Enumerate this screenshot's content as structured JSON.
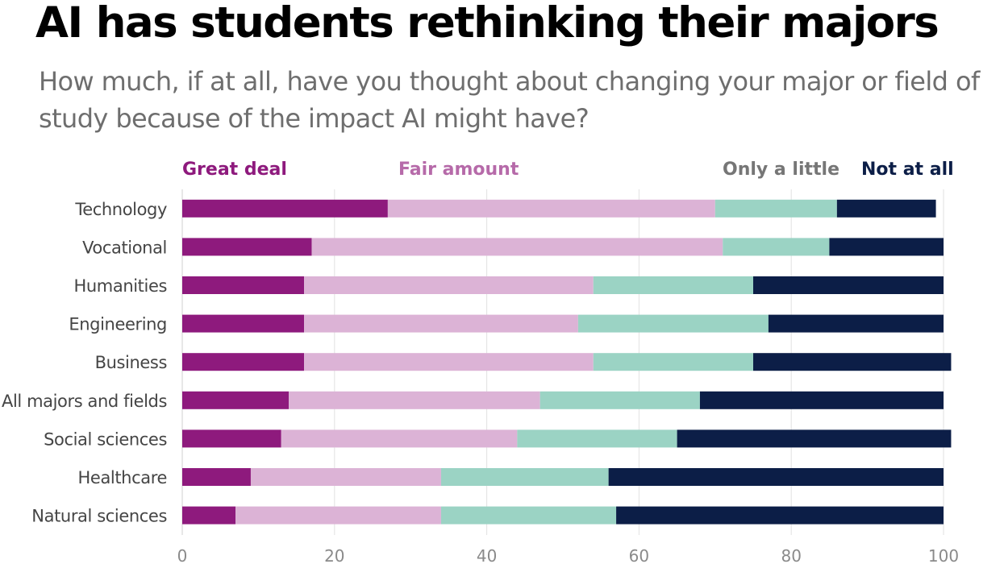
{
  "title": "AI has students rethinking their majors",
  "subtitle": "How much, if at all, have you thought about changing your major or field of study because of the impact AI might have?",
  "chart_data": {
    "type": "bar",
    "orientation": "horizontal",
    "stacked": true,
    "categories": [
      "Technology",
      "Vocational",
      "Humanities",
      "Engineering",
      "Business",
      "All majors and fields",
      "Social sciences",
      "Healthcare",
      "Natural sciences"
    ],
    "series": [
      {
        "name": "Great deal",
        "color": "#8e1a7d",
        "values": [
          27,
          17,
          16,
          16,
          16,
          14,
          13,
          9,
          7
        ]
      },
      {
        "name": "Fair amount",
        "color": "#dcb3d6",
        "values": [
          43,
          54,
          38,
          36,
          38,
          33,
          31,
          25,
          27
        ]
      },
      {
        "name": "Only a little",
        "color": "#9bd3c4",
        "values": [
          16,
          14,
          21,
          25,
          21,
          21,
          21,
          22,
          23
        ]
      },
      {
        "name": "Not at all",
        "color": "#0c1e47",
        "values": [
          13,
          15,
          25,
          23,
          26,
          32,
          36,
          44,
          43
        ]
      }
    ],
    "legend_colors": [
      "#8e1a7d",
      "#b66aa9",
      "#767676",
      "#0c1e47"
    ],
    "xlim": [
      0,
      100
    ],
    "xticks": [
      0,
      20,
      40,
      60,
      80,
      100
    ],
    "grid": true,
    "legend_position": "top"
  }
}
